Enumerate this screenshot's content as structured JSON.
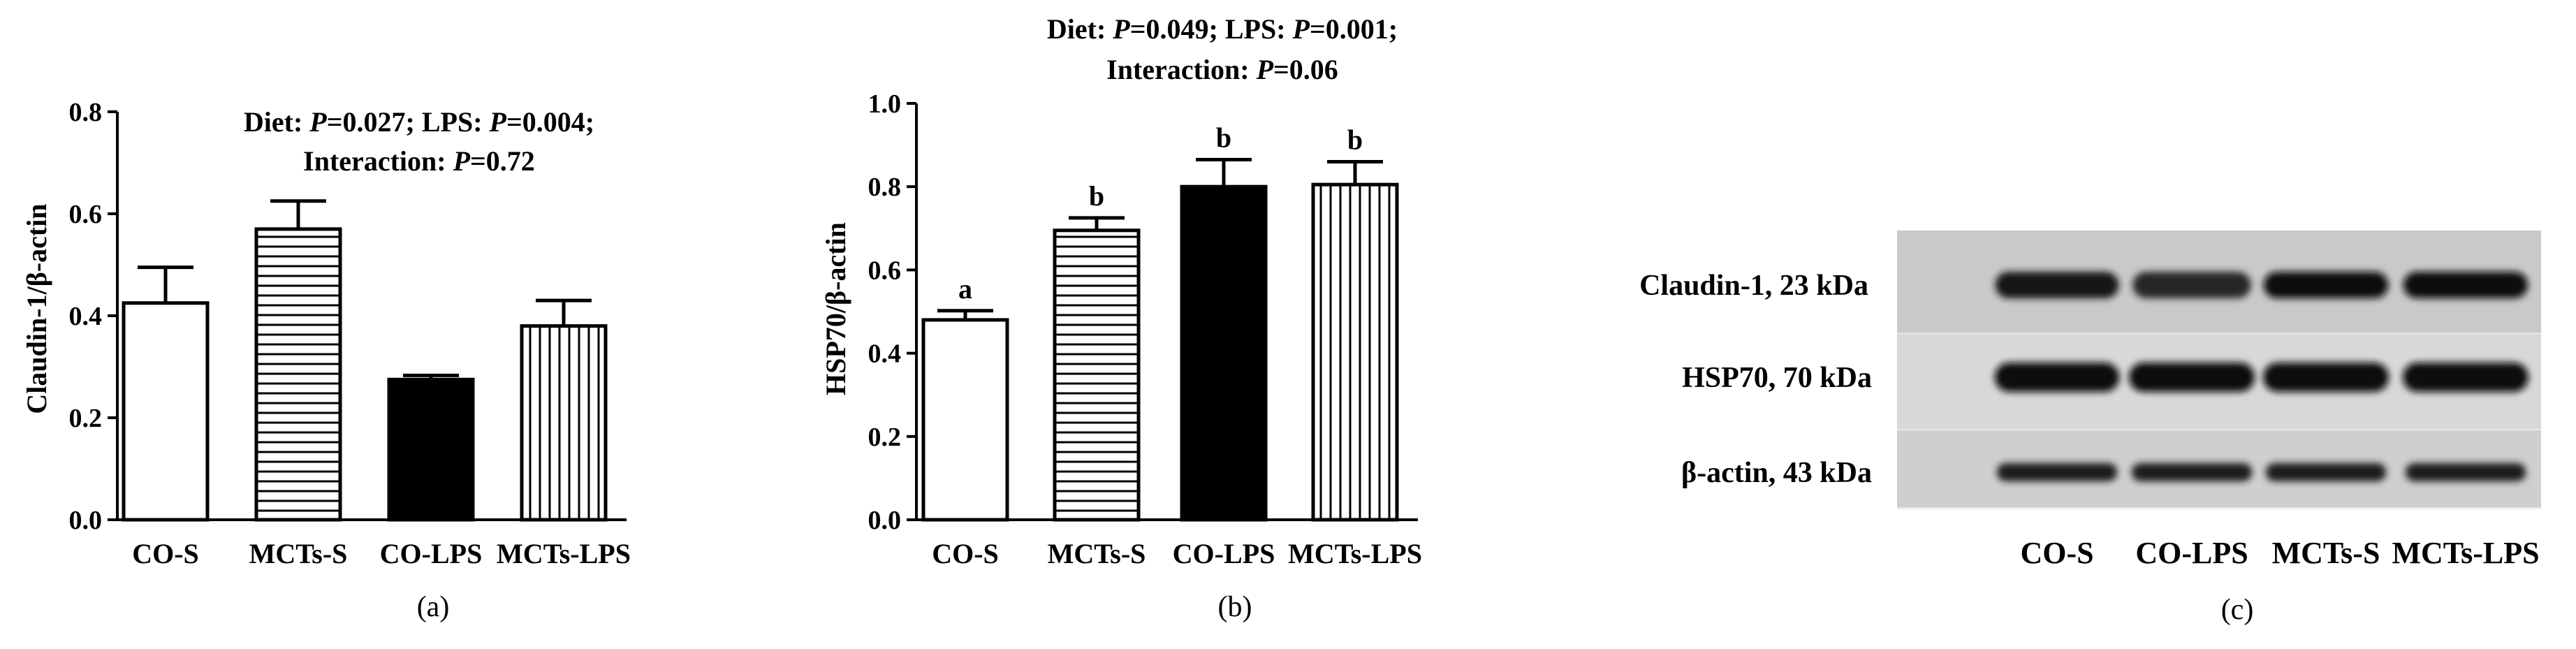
{
  "chart_data": [
    {
      "type": "bar",
      "panel_label": "(a)",
      "title_line1": {
        "diet_prefix": "Diet: ",
        "diet_p_symbol": "P",
        "diet_p_value": "=0.027; LPS: ",
        "lps_p_symbol": "P",
        "lps_p_value": "=0.004;"
      },
      "title_line2": {
        "prefix": "Interaction: ",
        "p_symbol": "P",
        "value": "=0.72"
      },
      "ylabel": "Claudin-1/β-actin",
      "xlabel": "",
      "ylim": [
        0,
        0.8
      ],
      "yticks": [
        0.0,
        0.2,
        0.4,
        0.6,
        0.8
      ],
      "ytick_labels": [
        "0.0",
        "0.2",
        "0.4",
        "0.6",
        "0.8"
      ],
      "categories": [
        "CO-S",
        "MCTs-S",
        "CO-LPS",
        "MCTs-LPS"
      ],
      "values": [
        0.425,
        0.57,
        0.275,
        0.38
      ],
      "errors": [
        0.07,
        0.055,
        0.008,
        0.05
      ],
      "fills": [
        "white",
        "horizontal-stripes",
        "black",
        "vertical-stripes"
      ],
      "significance": []
    },
    {
      "type": "bar",
      "panel_label": "(b)",
      "title_line1": {
        "diet_prefix": "Diet: ",
        "diet_p_symbol": "P",
        "diet_p_value": "=0.049; LPS: ",
        "lps_p_symbol": "P",
        "lps_p_value": "=0.001;"
      },
      "title_line2": {
        "prefix": "Interaction: ",
        "p_symbol": "P",
        "value": "=0.06"
      },
      "ylabel": "HSP70/β-actin",
      "xlabel": "",
      "ylim": [
        0,
        1.0
      ],
      "yticks": [
        0.0,
        0.2,
        0.4,
        0.6,
        0.8,
        1.0
      ],
      "ytick_labels": [
        "0.0",
        "0.2",
        "0.4",
        "0.6",
        "0.8",
        "1.0"
      ],
      "categories": [
        "CO-S",
        "MCTs-S",
        "CO-LPS",
        "MCTs-LPS"
      ],
      "values": [
        0.48,
        0.695,
        0.8,
        0.805
      ],
      "errors": [
        0.022,
        0.03,
        0.065,
        0.055
      ],
      "fills": [
        "white",
        "horizontal-stripes",
        "black",
        "vertical-stripes"
      ],
      "significance": [
        "a",
        "b",
        "b",
        "b"
      ]
    }
  ],
  "blot": {
    "panel_label": "(c)",
    "rows": [
      {
        "label": "Claudin-1, 23 kDa",
        "band_intensity": [
          0.9,
          0.65,
          0.95,
          0.95
        ]
      },
      {
        "label": "HSP70, 70 kDa",
        "band_intensity": [
          0.95,
          1.0,
          1.0,
          1.0
        ]
      },
      {
        "label": "β-actin, 43 kDa",
        "band_intensity": [
          0.75,
          0.75,
          0.75,
          0.75
        ]
      }
    ],
    "lanes": [
      "CO-S",
      "CO-LPS",
      "MCTs-S",
      "MCTs-LPS"
    ]
  }
}
